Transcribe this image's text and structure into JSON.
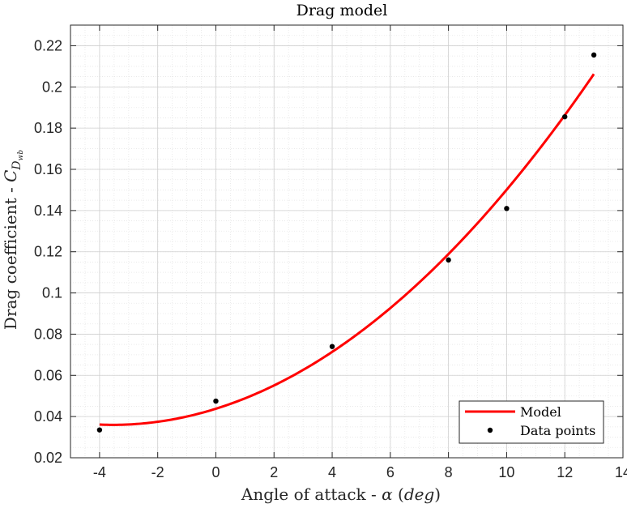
{
  "chart_data": {
    "type": "line",
    "title": "Drag model",
    "xlabel": "Angle of attack - α (deg)",
    "ylabel": "Drag coefficient - C_{D_{wb}}",
    "xlim": [
      -5,
      14
    ],
    "ylim": [
      0.02,
      0.23
    ],
    "x_ticks": [
      -4,
      -2,
      0,
      2,
      4,
      6,
      8,
      10,
      12,
      14
    ],
    "x_tick_labels": [
      "-4",
      "-2",
      "0",
      "2",
      "4",
      "6",
      "8",
      "10",
      "12",
      "14"
    ],
    "y_ticks": [
      0.02,
      0.04,
      0.06,
      0.08,
      0.1,
      0.12,
      0.14,
      0.16,
      0.18,
      0.2,
      0.22
    ],
    "y_tick_labels": [
      "0.02",
      "0.04",
      "0.06",
      "0.08",
      "0.1",
      "0.12",
      "0.14",
      "0.16",
      "0.18",
      "0.2",
      "0.22"
    ],
    "grid": true,
    "minor_grid": true,
    "legend_position": "bottom-right",
    "series": [
      {
        "name": "Model",
        "kind": "line",
        "color": "#ff0000",
        "x_range": [
          -4,
          13
        ],
        "model": {
          "form": "quadratic",
          "c0": 0.0438,
          "c1": 0.00441,
          "c2": 0.000622
        }
      },
      {
        "name": "Data points",
        "kind": "scatter",
        "color": "#000000",
        "x": [
          -4,
          0,
          4,
          8,
          10,
          12,
          13
        ],
        "y": [
          0.0335,
          0.0475,
          0.074,
          0.116,
          0.141,
          0.1855,
          0.2155
        ]
      }
    ]
  }
}
